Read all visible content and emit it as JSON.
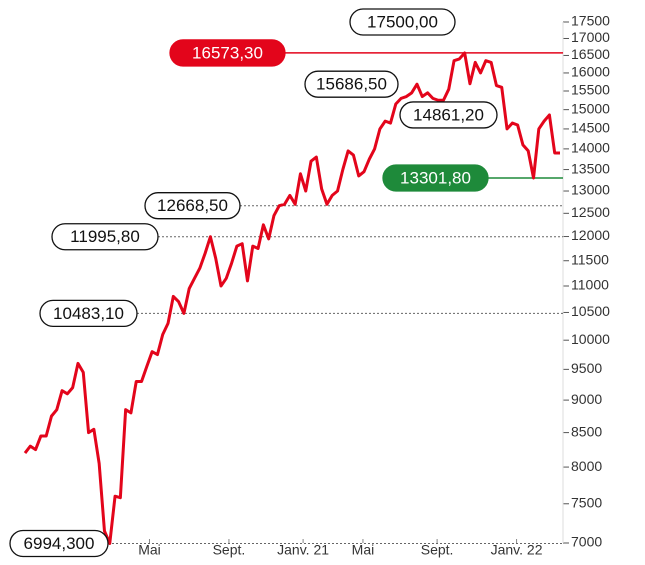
{
  "chart_data": {
    "type": "line",
    "log_y": true,
    "color": "#e3051b",
    "values": [
      8200,
      8300,
      8250,
      8450,
      8450,
      8750,
      8850,
      9150,
      9100,
      9200,
      9600,
      9450,
      8500,
      8550,
      8050,
      7150,
      6994.3,
      7600,
      7580,
      8850,
      8800,
      9300,
      9300,
      9550,
      9800,
      9750,
      10100,
      10300,
      10800,
      10700,
      10483.1,
      10950,
      11150,
      11350,
      11650,
      11995.8,
      11550,
      11000,
      11150,
      11450,
      11800,
      11850,
      11100,
      11800,
      11750,
      12250,
      11950,
      12450,
      12668.5,
      12700,
      12900,
      12700,
      13400,
      13000,
      13700,
      13800,
      13050,
      12700,
      12900,
      13000,
      13500,
      13950,
      13850,
      13350,
      13450,
      13750,
      14000,
      14500,
      14700,
      14650,
      15150,
      15300,
      15350,
      15450,
      15686.5,
      15350,
      15450,
      15300,
      15250,
      15250,
      15550,
      16350,
      16400,
      16573.3,
      15700,
      16300,
      16000,
      16350,
      16300,
      15650,
      15600,
      14500,
      14650,
      14600,
      14100,
      13950,
      13301.8,
      14500,
      14700,
      14861.2,
      13900,
      13900
    ],
    "xlim": [
      0,
      101
    ],
    "xticks": [
      {
        "value": 23.5,
        "label": "Mai"
      },
      {
        "value": 38.5,
        "label": "Sept."
      },
      {
        "value": 52.5,
        "label": "Janv. 21"
      },
      {
        "value": 63.8,
        "label": "Mai"
      },
      {
        "value": 77.8,
        "label": "Sept."
      },
      {
        "value": 92.8,
        "label": "Janv. 22"
      }
    ],
    "ylim": [
      7000,
      17500
    ],
    "yticks": [
      7000,
      7500,
      8000,
      8500,
      9000,
      9500,
      10000,
      10500,
      11000,
      11500,
      12000,
      12500,
      13000,
      13500,
      14000,
      14500,
      15000,
      15500,
      16000,
      16500,
      17000,
      17500
    ],
    "annotations": [
      {
        "value": 17500,
        "label": "17500,00",
        "style": "outline"
      },
      {
        "value": 16573.3,
        "label": "16573,30",
        "style": "red"
      },
      {
        "value": 15686.5,
        "label": "15686,50",
        "style": "outline"
      },
      {
        "value": 14861.2,
        "label": "14861,20",
        "style": "outline"
      },
      {
        "value": 13301.8,
        "label": "13301,80",
        "style": "green"
      },
      {
        "value": 12668.5,
        "label": "12668,50",
        "style": "dotted"
      },
      {
        "value": 11995.8,
        "label": "11995,80",
        "style": "dotted"
      },
      {
        "value": 10483.1,
        "label": "10483,10",
        "style": "dotted"
      },
      {
        "value": 6994.3,
        "label": "6994,300",
        "style": "dotted"
      }
    ]
  }
}
